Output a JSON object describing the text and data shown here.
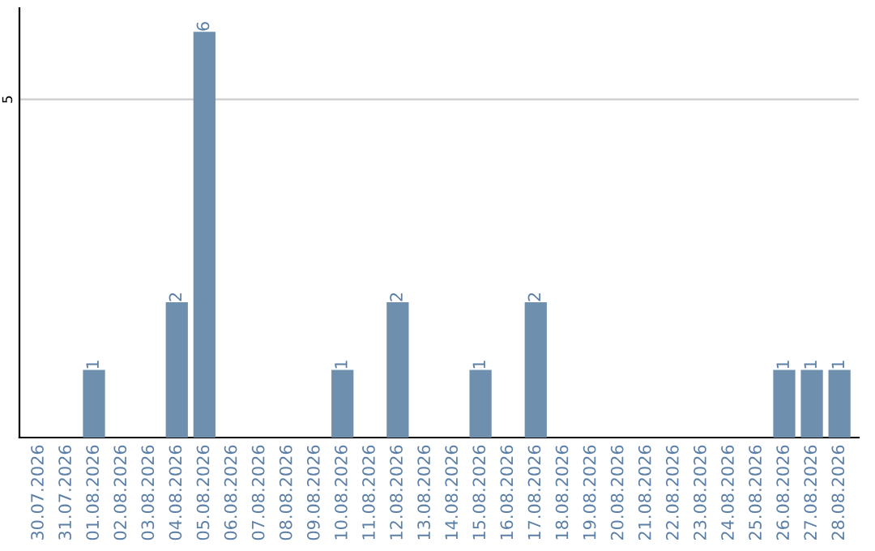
{
  "chart_data": {
    "type": "bar",
    "categories": [
      "30.07.2026",
      "31.07.2026",
      "01.08.2026",
      "02.08.2026",
      "03.08.2026",
      "04.08.2026",
      "05.08.2026",
      "06.08.2026",
      "07.08.2026",
      "08.08.2026",
      "09.08.2026",
      "10.08.2026",
      "11.08.2026",
      "12.08.2026",
      "13.08.2026",
      "14.08.2026",
      "15.08.2026",
      "16.08.2026",
      "17.08.2026",
      "18.08.2026",
      "19.08.2026",
      "20.08.2026",
      "21.08.2026",
      "22.08.2026",
      "23.08.2026",
      "24.08.2026",
      "25.08.2026",
      "26.08.2026",
      "27.08.2026",
      "28.08.2026"
    ],
    "values": [
      0,
      0,
      1,
      0,
      0,
      2,
      6,
      0,
      0,
      0,
      0,
      1,
      0,
      2,
      0,
      0,
      1,
      0,
      2,
      0,
      0,
      0,
      0,
      0,
      0,
      0,
      0,
      1,
      1,
      1
    ],
    "value_labels": [
      null,
      null,
      "1",
      null,
      null,
      "2",
      "6",
      null,
      null,
      null,
      null,
      "1",
      null,
      "2",
      null,
      null,
      "1",
      null,
      "2",
      null,
      null,
      null,
      null,
      null,
      null,
      null,
      null,
      "1",
      "1",
      "1"
    ],
    "color": "#6f8fae",
    "ylim": [
      0,
      6.35
    ],
    "yticks": [
      5
    ],
    "grid": "y"
  }
}
